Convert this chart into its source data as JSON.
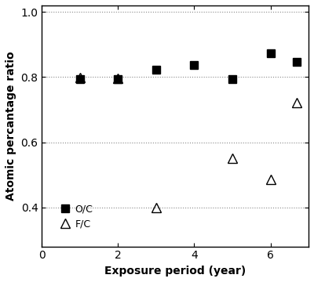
{
  "oc_x": [
    1,
    2,
    3,
    4,
    5,
    6,
    6.7
  ],
  "oc_y": [
    0.793,
    0.793,
    0.822,
    0.838,
    0.793,
    0.872,
    0.847
  ],
  "fc_x": [
    1,
    2,
    3,
    5,
    6,
    6.7
  ],
  "fc_y": [
    0.798,
    0.796,
    0.4,
    0.55,
    0.487,
    0.722
  ],
  "xlabel": "Exposure period (year)",
  "ylabel": "Atomic percantage ratio",
  "xlim": [
    0,
    7
  ],
  "ylim": [
    0.28,
    1.02
  ],
  "yticks": [
    0.4,
    0.6,
    0.8,
    1.0
  ],
  "xticks": [
    0,
    2,
    4,
    6
  ],
  "legend_labels": [
    "O/C",
    "F/C"
  ],
  "grid_color": "#888888",
  "marker_oc": "s",
  "marker_fc": "^",
  "marker_color_oc": "#000000",
  "marker_color_fc": "none",
  "marker_edge_fc": "#000000",
  "markersize_oc": 7,
  "markersize_fc": 8
}
